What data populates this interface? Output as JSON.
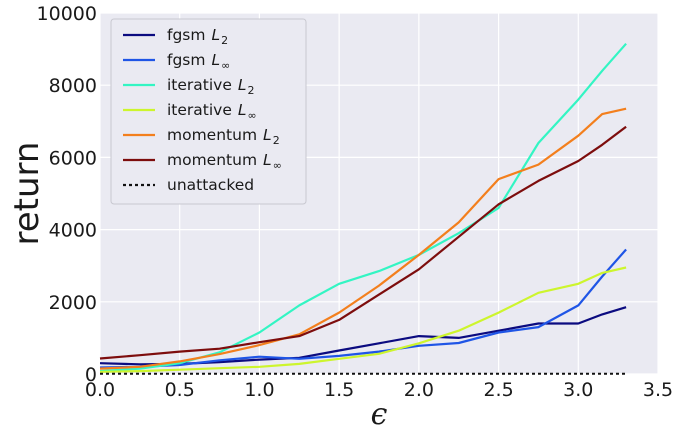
{
  "chart_data": {
    "type": "line",
    "title": "",
    "xlabel": "ϵ",
    "ylabel": "return",
    "xlim": [
      0.0,
      3.5
    ],
    "ylim": [
      0,
      10000
    ],
    "xticks": [
      "0.0",
      "0.5",
      "1.0",
      "1.5",
      "2.0",
      "2.5",
      "3.0",
      "3.5"
    ],
    "yticks": [
      "0",
      "2000",
      "4000",
      "6000",
      "8000",
      "10000"
    ],
    "grid": true,
    "legend_position": "top-left",
    "background": "#eaeaf2",
    "x": [
      0.0,
      0.25,
      0.5,
      0.75,
      1.0,
      1.25,
      1.5,
      1.75,
      2.0,
      2.25,
      2.5,
      2.75,
      3.0,
      3.15,
      3.3
    ],
    "series": [
      {
        "name": "fgsm",
        "subscript": "2",
        "color": "#0b0b80",
        "dashed": false,
        "values": [
          300,
          270,
          280,
          330,
          400,
          450,
          650,
          850,
          1050,
          1000,
          1200,
          1400,
          1400,
          1650,
          1850
        ]
      },
      {
        "name": "fgsm",
        "subscript": "∞",
        "color": "#1f55e6",
        "dashed": false,
        "values": [
          180,
          200,
          250,
          380,
          480,
          420,
          500,
          620,
          780,
          860,
          1150,
          1300,
          1900,
          2700,
          3450
        ]
      },
      {
        "name": "iterative",
        "subscript": "2",
        "color": "#33f5c3",
        "dashed": false,
        "values": [
          80,
          150,
          300,
          600,
          1150,
          1900,
          2500,
          2850,
          3300,
          3900,
          4600,
          6400,
          7600,
          8400,
          9150
        ]
      },
      {
        "name": "iterative",
        "subscript": "∞",
        "color": "#cdf52d",
        "dashed": false,
        "values": [
          60,
          80,
          120,
          160,
          200,
          280,
          420,
          560,
          850,
          1200,
          1700,
          2250,
          2500,
          2800,
          2950
        ]
      },
      {
        "name": "momentum",
        "subscript": "2",
        "color": "#f37f1d",
        "dashed": false,
        "values": [
          150,
          200,
          350,
          550,
          800,
          1100,
          1700,
          2450,
          3300,
          4200,
          5400,
          5800,
          6600,
          7200,
          7350
        ]
      },
      {
        "name": "momentum",
        "subscript": "∞",
        "color": "#7d0d0d",
        "dashed": false,
        "values": [
          430,
          520,
          620,
          700,
          880,
          1050,
          1500,
          2200,
          2900,
          3800,
          4700,
          5350,
          5900,
          6350,
          6850
        ]
      },
      {
        "name": "unattacked",
        "subscript": "",
        "color": "#111111",
        "dashed": true,
        "values": [
          5,
          5,
          5,
          5,
          5,
          5,
          5,
          5,
          5,
          5,
          5,
          5,
          5,
          5,
          5
        ]
      }
    ]
  }
}
